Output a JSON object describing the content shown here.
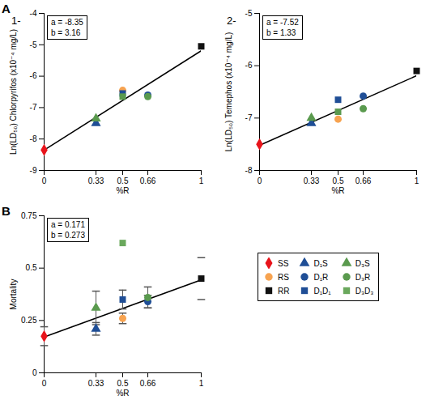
{
  "chart_data": [
    {
      "type": "scatter",
      "panel": "A",
      "title": "1-",
      "x_label": "%R",
      "y_label": "Ln(LD₅₀) Chlorpyrifos (x10⁻⁴ mg/L)",
      "xlim": [
        0,
        1
      ],
      "xticks": [
        0,
        0.33,
        0.5,
        0.66,
        1
      ],
      "ylim": [
        -9,
        -4
      ],
      "yticks": [
        -9,
        -8,
        -7,
        -6,
        -5,
        -4
      ],
      "fit": {
        "a": {
          "value": -8.35,
          "label": "a = -8.35"
        },
        "b": {
          "value": 3.16,
          "label": "b = 3.16"
        }
      },
      "series": [
        {
          "name": "SS",
          "color": "#e8141b",
          "marker": "diamond",
          "x": [
            0
          ],
          "values": [
            -8.35
          ]
        },
        {
          "name": "RS",
          "color": "#f7a350",
          "marker": "circle",
          "x": [
            0.5
          ],
          "values": [
            -6.45
          ]
        },
        {
          "name": "RR",
          "color": "#111111",
          "marker": "square",
          "x": [
            1
          ],
          "values": [
            -5.05
          ]
        },
        {
          "name": "D₁S",
          "color": "#1f4e96",
          "marker": "triangle",
          "x": [
            0.33
          ],
          "values": [
            -7.5
          ]
        },
        {
          "name": "D₁R",
          "color": "#1f4e96",
          "marker": "circle",
          "x": [
            0.66
          ],
          "values": [
            -6.6
          ]
        },
        {
          "name": "D₁D₁",
          "color": "#1f4e96",
          "marker": "square",
          "x": [
            0.5
          ],
          "values": [
            -6.55
          ]
        },
        {
          "name": "D₃S",
          "color": "#5a9a4e",
          "marker": "triangle",
          "x": [
            0.33
          ],
          "values": [
            -7.35
          ]
        },
        {
          "name": "D₃R",
          "color": "#5a9a4e",
          "marker": "circle",
          "x": [
            0.66
          ],
          "values": [
            -6.65
          ]
        },
        {
          "name": "D₃D₃",
          "color": "#5a9a4e",
          "marker": "square",
          "x": [
            0.5
          ],
          "values": [
            -6.65
          ]
        }
      ]
    },
    {
      "type": "scatter",
      "title": "2-",
      "x_label": "%R",
      "y_label": "Ln(LD₅₀) Temephos (x10⁻⁴ mg/L)",
      "xlim": [
        0,
        1
      ],
      "xticks": [
        0,
        0.33,
        0.5,
        0.66,
        1
      ],
      "ylim": [
        -8,
        -5
      ],
      "yticks": [
        -8,
        -7,
        -6,
        -5
      ],
      "fit": {
        "a": {
          "value": -7.52,
          "label": "a = -7.52"
        },
        "b": {
          "value": 1.33,
          "label": "b = 1.33"
        }
      },
      "series": [
        {
          "name": "SS",
          "color": "#e8141b",
          "marker": "diamond",
          "x": [
            0
          ],
          "values": [
            -7.5
          ]
        },
        {
          "name": "RS",
          "color": "#f7a350",
          "marker": "circle",
          "x": [
            0.5
          ],
          "values": [
            -7.02
          ]
        },
        {
          "name": "RR",
          "color": "#111111",
          "marker": "square",
          "x": [
            1
          ],
          "values": [
            -6.1
          ]
        },
        {
          "name": "D₁S",
          "color": "#1f4e96",
          "marker": "triangle",
          "x": [
            0.33
          ],
          "values": [
            -7.1
          ]
        },
        {
          "name": "D₁R",
          "color": "#1f4e96",
          "marker": "circle",
          "x": [
            0.66
          ],
          "values": [
            -6.58
          ]
        },
        {
          "name": "D₁D₁",
          "color": "#1f4e96",
          "marker": "square",
          "x": [
            0.5
          ],
          "values": [
            -6.65
          ]
        },
        {
          "name": "D₃S",
          "color": "#5a9a4e",
          "marker": "triangle",
          "x": [
            0.33
          ],
          "values": [
            -7.0
          ]
        },
        {
          "name": "D₃R",
          "color": "#5a9a4e",
          "marker": "circle",
          "x": [
            0.66
          ],
          "values": [
            -6.82
          ]
        },
        {
          "name": "D₃D₃",
          "color": "#5a9a4e",
          "marker": "square",
          "x": [
            0.5
          ],
          "values": [
            -6.88
          ]
        }
      ]
    },
    {
      "type": "scatter",
      "panel": "B",
      "legend": "right",
      "x_label": "%R",
      "y_label": "Mortality",
      "xlim": [
        0,
        1
      ],
      "xticks": [
        0,
        0.33,
        0.5,
        0.66,
        1
      ],
      "ylim": [
        0,
        0.75
      ],
      "yticks": [
        0,
        0.25,
        0.5,
        0.75
      ],
      "fit": {
        "a": {
          "value": 0.171,
          "label": "a = 0.171"
        },
        "b": {
          "value": 0.273,
          "label": "b = 0.273"
        }
      },
      "series": [
        {
          "name": "SS",
          "color": "#e8141b",
          "marker": "diamond",
          "x": [
            0
          ],
          "values": [
            0.175
          ],
          "errors": [
            0.045
          ]
        },
        {
          "name": "RS",
          "color": "#f7a350",
          "marker": "circle",
          "x": [
            0.5
          ],
          "values": [
            0.26
          ],
          "errors": [
            0.025
          ]
        },
        {
          "name": "RR",
          "color": "#111111",
          "marker": "square",
          "x": [
            1
          ],
          "values": [
            0.45
          ],
          "errors": [
            0.1
          ]
        },
        {
          "name": "D₁S",
          "color": "#1f4e96",
          "marker": "triangle",
          "x": [
            0.33
          ],
          "values": [
            0.21
          ],
          "errors": [
            0.03
          ]
        },
        {
          "name": "D₁R",
          "color": "#1f4e96",
          "marker": "circle",
          "x": [
            0.66
          ],
          "values": [
            0.34
          ],
          "errors": [
            0.03
          ]
        },
        {
          "name": "D₁D₁",
          "color": "#1f4e96",
          "marker": "square",
          "x": [
            0.5
          ],
          "values": [
            0.35
          ],
          "errors": [
            0.045
          ]
        },
        {
          "name": "D₃S",
          "color": "#5a9a4e",
          "marker": "triangle",
          "x": [
            0.33
          ],
          "values": [
            0.31
          ],
          "errors": [
            0.08
          ]
        },
        {
          "name": "D₃R",
          "color": "#5a9a4e",
          "marker": "circle",
          "x": [
            0.66
          ],
          "values": [
            0.36
          ],
          "errors": [
            0.05
          ]
        },
        {
          "name": "D₃D₃",
          "color": "#6aa85c",
          "marker": "square",
          "x": [
            0.5
          ],
          "values": [
            0.62
          ],
          "errors": [
            null
          ]
        }
      ]
    }
  ]
}
